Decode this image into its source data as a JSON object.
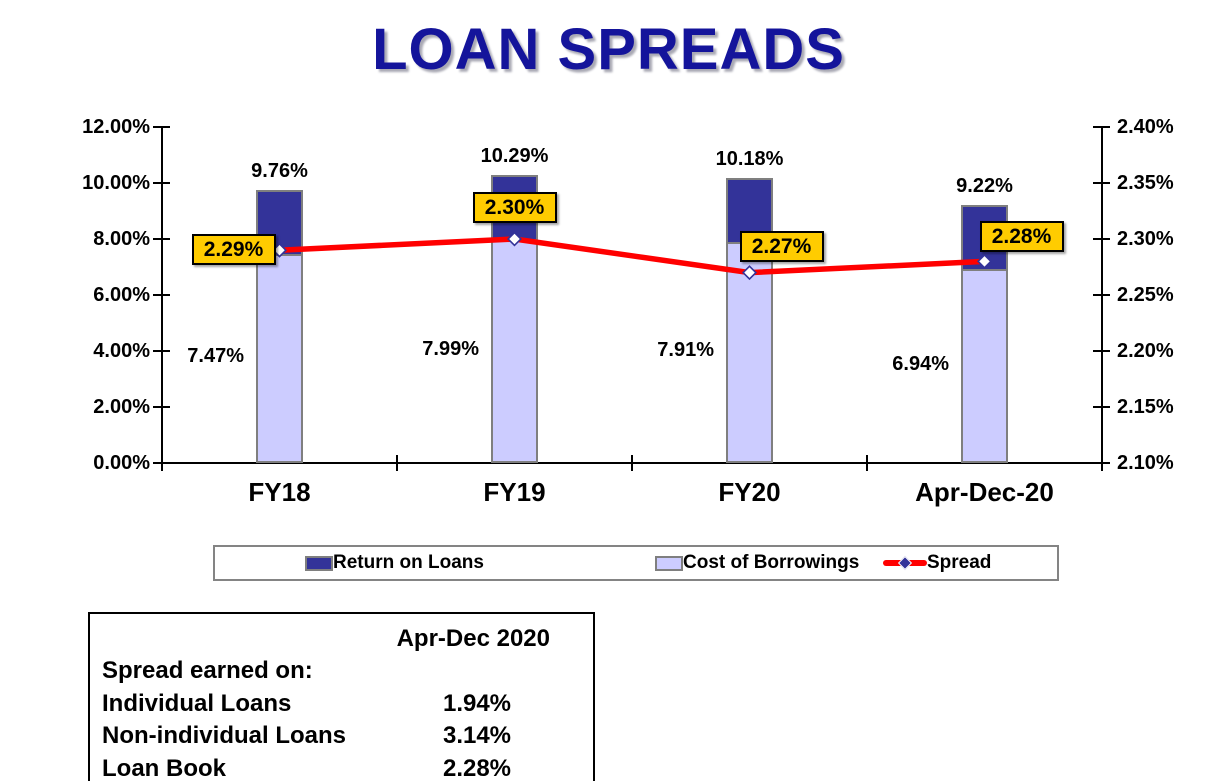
{
  "title": {
    "text": "LOAN SPREADS",
    "color": "#14149B"
  },
  "chart_data": {
    "type": "bar",
    "subtype": "bar-line-combo-dual-axis",
    "categories": [
      "FY18",
      "FY19",
      "FY20",
      "Apr-Dec-20"
    ],
    "series": [
      {
        "name": "Return on Loans",
        "type": "bar",
        "axis": "left",
        "color": "#333399",
        "values": [
          9.76,
          10.29,
          10.18,
          9.22
        ],
        "labels": [
          "9.76%",
          "10.29%",
          "10.18%",
          "9.22%"
        ]
      },
      {
        "name": "Cost of Borrowings",
        "type": "bar",
        "axis": "left",
        "color": "#CCCCFF",
        "values": [
          7.47,
          7.99,
          7.91,
          6.94
        ],
        "labels": [
          "7.47%",
          "7.99%",
          "7.91%",
          "6.94%"
        ]
      },
      {
        "name": "Spread",
        "type": "line",
        "axis": "right",
        "color": "#FF0000",
        "values": [
          2.29,
          2.3,
          2.27,
          2.28
        ],
        "labels": [
          "2.29%",
          "2.30%",
          "2.27%",
          "2.28%"
        ]
      }
    ],
    "left_axis": {
      "min": 0,
      "max": 12,
      "ticks": [
        "12.00%",
        "10.00%",
        "8.00%",
        "6.00%",
        "4.00%",
        "2.00%",
        "0.00%"
      ]
    },
    "right_axis": {
      "min": 2.1,
      "max": 2.4,
      "ticks": [
        "2.40%",
        "2.35%",
        "2.30%",
        "2.25%",
        "2.20%",
        "2.15%",
        "2.10%"
      ]
    },
    "legend_position": "bottom",
    "grid": false,
    "data_label_box_color": "#FFCC00"
  },
  "table": {
    "header": "Apr-Dec 2020",
    "rows": [
      {
        "label": "Spread earned on:",
        "value": ""
      },
      {
        "label": "Individual Loans",
        "value": "1.94%"
      },
      {
        "label": "Non-individual Loans",
        "value": "3.14%"
      },
      {
        "label": "Loan Book",
        "value": "2.28%"
      }
    ]
  }
}
